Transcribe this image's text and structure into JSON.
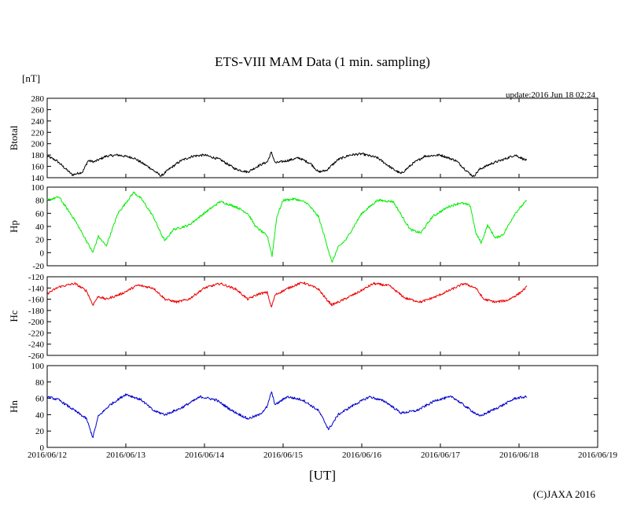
{
  "chart_data": {
    "type": "line",
    "title": "ETS-VIII MAM Data (1 min. sampling)",
    "unit_label": "[nT]",
    "xlabel": "[UT]",
    "update_label": "update:2016 Jun 18 02:24",
    "copyright": "(C)JAXA 2016",
    "x_ticks": [
      "2016/06/12",
      "2016/06/13",
      "2016/06/14",
      "2016/06/15",
      "2016/06/16",
      "2016/06/17",
      "2016/06/18",
      "2016/06/19"
    ],
    "xlim_days": [
      0,
      7
    ],
    "data_end_day": 6.1,
    "grid": false,
    "panels": [
      {
        "name": "Btotal",
        "ylabel": "Btotal",
        "color": "#000000",
        "ylim": [
          140,
          280
        ],
        "yticks": [
          140,
          160,
          180,
          200,
          220,
          240,
          260,
          280
        ],
        "series_x_days": [
          0,
          0.12,
          0.32,
          0.45,
          0.52,
          0.6,
          0.75,
          0.9,
          1.1,
          1.3,
          1.45,
          1.55,
          1.7,
          1.85,
          2.0,
          2.2,
          2.4,
          2.55,
          2.7,
          2.8,
          2.85,
          2.9,
          3.05,
          3.2,
          3.35,
          3.45,
          3.55,
          3.7,
          3.85,
          4.0,
          4.2,
          4.4,
          4.5,
          4.65,
          4.8,
          5.0,
          5.2,
          5.35,
          5.42,
          5.5,
          5.65,
          5.8,
          5.95,
          6.1
        ],
        "series_y": [
          178,
          170,
          145,
          150,
          170,
          168,
          178,
          180,
          175,
          158,
          143,
          155,
          170,
          178,
          180,
          172,
          155,
          150,
          162,
          168,
          185,
          166,
          170,
          175,
          165,
          150,
          153,
          172,
          180,
          182,
          175,
          155,
          147,
          165,
          178,
          180,
          170,
          150,
          142,
          155,
          165,
          172,
          180,
          170
        ]
      },
      {
        "name": "Hp",
        "ylabel": "Hp",
        "color": "#00ee00",
        "ylim": [
          -20,
          100
        ],
        "yticks": [
          -20,
          0,
          20,
          40,
          60,
          80,
          100
        ],
        "series_x_days": [
          0,
          0.15,
          0.35,
          0.5,
          0.58,
          0.65,
          0.75,
          0.9,
          1.1,
          1.2,
          1.35,
          1.45,
          1.5,
          1.6,
          1.8,
          2.05,
          2.2,
          2.4,
          2.55,
          2.65,
          2.8,
          2.86,
          2.92,
          3.0,
          3.15,
          3.3,
          3.45,
          3.55,
          3.62,
          3.7,
          3.8,
          4.0,
          4.2,
          4.4,
          4.55,
          4.62,
          4.75,
          4.9,
          5.1,
          5.25,
          5.38,
          5.45,
          5.52,
          5.6,
          5.7,
          5.8,
          5.95,
          6.1
        ],
        "series_y": [
          80,
          85,
          50,
          18,
          0,
          25,
          10,
          60,
          92,
          82,
          55,
          28,
          18,
          35,
          42,
          65,
          78,
          70,
          60,
          40,
          25,
          -5,
          55,
          80,
          82,
          76,
          55,
          15,
          -15,
          8,
          20,
          60,
          80,
          78,
          48,
          35,
          30,
          55,
          70,
          76,
          72,
          30,
          15,
          42,
          22,
          28,
          60,
          80
        ]
      },
      {
        "name": "Hc",
        "ylabel": "Hc",
        "color": "#ee0000",
        "ylim": [
          -260,
          -120
        ],
        "yticks": [
          -260,
          -240,
          -220,
          -200,
          -180,
          -160,
          -140,
          -120
        ],
        "series_x_days": [
          0,
          0.15,
          0.35,
          0.5,
          0.58,
          0.65,
          0.75,
          0.95,
          1.15,
          1.35,
          1.5,
          1.65,
          1.8,
          2.0,
          2.2,
          2.4,
          2.55,
          2.7,
          2.8,
          2.85,
          2.9,
          3.1,
          3.25,
          3.45,
          3.55,
          3.62,
          3.75,
          3.95,
          4.15,
          4.35,
          4.55,
          4.75,
          4.95,
          5.15,
          5.3,
          5.45,
          5.55,
          5.7,
          5.85,
          6.0,
          6.1
        ],
        "series_y": [
          -150,
          -138,
          -132,
          -145,
          -170,
          -155,
          -160,
          -150,
          -135,
          -140,
          -160,
          -165,
          -160,
          -140,
          -132,
          -142,
          -160,
          -150,
          -148,
          -175,
          -152,
          -138,
          -130,
          -142,
          -160,
          -170,
          -162,
          -148,
          -132,
          -136,
          -158,
          -165,
          -155,
          -142,
          -132,
          -140,
          -160,
          -165,
          -162,
          -150,
          -138
        ]
      },
      {
        "name": "Hn",
        "ylabel": "Hn",
        "color": "#0000cc",
        "ylim": [
          0,
          100
        ],
        "yticks": [
          0,
          20,
          40,
          60,
          80,
          100
        ],
        "series_x_days": [
          0,
          0.15,
          0.35,
          0.5,
          0.58,
          0.65,
          0.8,
          1.0,
          1.2,
          1.35,
          1.5,
          1.7,
          1.95,
          2.15,
          2.35,
          2.55,
          2.7,
          2.8,
          2.85,
          2.9,
          3.05,
          3.25,
          3.45,
          3.58,
          3.7,
          3.9,
          4.1,
          4.3,
          4.5,
          4.7,
          4.95,
          5.15,
          5.35,
          5.5,
          5.65,
          5.8,
          5.95,
          6.1
        ],
        "series_y": [
          62,
          58,
          45,
          35,
          12,
          38,
          52,
          65,
          58,
          45,
          40,
          48,
          62,
          58,
          45,
          35,
          40,
          50,
          68,
          52,
          62,
          58,
          45,
          22,
          40,
          52,
          62,
          56,
          42,
          45,
          58,
          62,
          48,
          38,
          45,
          52,
          60,
          62
        ]
      }
    ]
  }
}
